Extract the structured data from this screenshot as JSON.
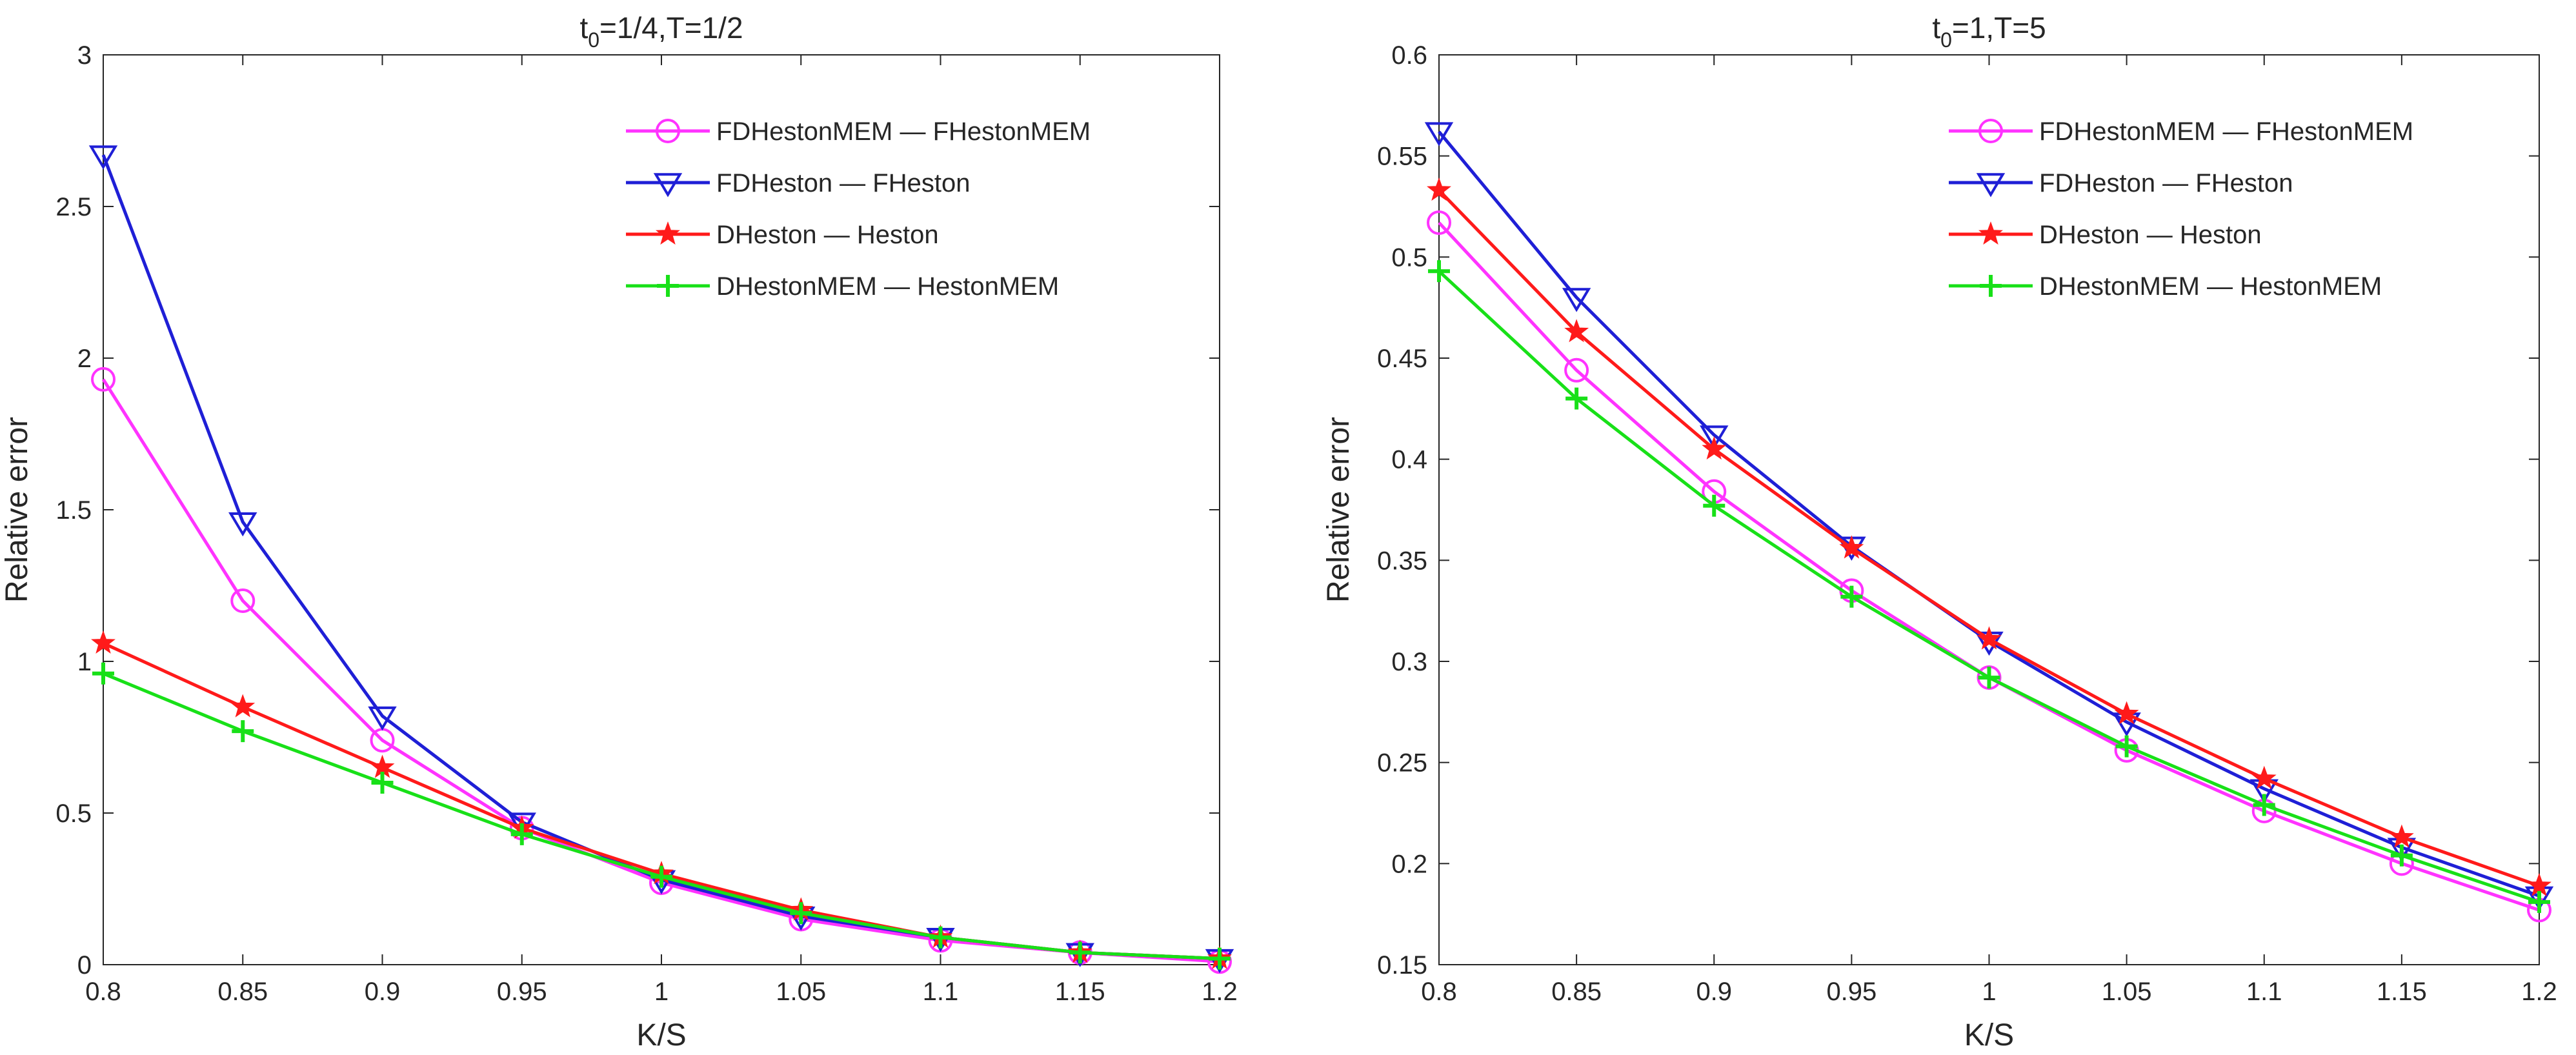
{
  "chart_data": [
    {
      "type": "line",
      "title": {
        "base": "t",
        "sub": "0",
        "rest": "=1/4,T=1/2"
      },
      "xlabel": "K/S",
      "ylabel": "Relative error",
      "x": [
        0.8,
        0.85,
        0.9,
        0.95,
        1,
        1.05,
        1.1,
        1.15,
        1.2
      ],
      "xticks": [
        "0.8",
        "0.85",
        "0.9",
        "0.95",
        "1",
        "1.05",
        "1.1",
        "1.15",
        "1.2"
      ],
      "xlim": [
        0.8,
        1.2
      ],
      "ylim": [
        0,
        3
      ],
      "yticks": [
        0,
        0.5,
        1,
        1.5,
        2,
        2.5,
        3
      ],
      "ytick_labels": [
        "0",
        "0.5",
        "1",
        "1.5",
        "2",
        "2.5",
        "3"
      ],
      "legend_position": "top-right",
      "series": [
        {
          "name": "FDHestonMEM — FHestonMEM",
          "color": "#ff33ff",
          "marker": "circle",
          "values": [
            1.93,
            1.2,
            0.74,
            0.45,
            0.27,
            0.15,
            0.08,
            0.04,
            0.01
          ]
        },
        {
          "name": "FDHeston — FHeston",
          "color": "#1f1fd6",
          "marker": "triangle-down",
          "values": [
            2.67,
            1.46,
            0.82,
            0.47,
            0.28,
            0.16,
            0.09,
            0.04,
            0.02
          ]
        },
        {
          "name": "DHeston — Heston",
          "color": "#ff1a1a",
          "marker": "star",
          "values": [
            1.06,
            0.85,
            0.65,
            0.45,
            0.3,
            0.18,
            0.09,
            0.04,
            0.02
          ]
        },
        {
          "name": "DHestonMEM — HestonMEM",
          "color": "#18e018",
          "marker": "plus",
          "values": [
            0.96,
            0.77,
            0.6,
            0.43,
            0.29,
            0.17,
            0.09,
            0.04,
            0.02
          ]
        }
      ]
    },
    {
      "type": "line",
      "title": {
        "base": "t",
        "sub": "0",
        "rest": "=1,T=5"
      },
      "xlabel": "K/S",
      "ylabel": "Relative error",
      "x": [
        0.8,
        0.85,
        0.9,
        0.95,
        1,
        1.05,
        1.1,
        1.15,
        1.2
      ],
      "xticks": [
        "0.8",
        "0.85",
        "0.9",
        "0.95",
        "1",
        "1.05",
        "1.1",
        "1.15",
        "1.2"
      ],
      "xlim": [
        0.8,
        1.2
      ],
      "ylim": [
        0.15,
        0.6
      ],
      "yticks": [
        0.15,
        0.2,
        0.25,
        0.3,
        0.35,
        0.4,
        0.45,
        0.5,
        0.55,
        0.6
      ],
      "ytick_labels": [
        "0.15",
        "0.2",
        "0.25",
        "0.3",
        "0.35",
        "0.4",
        "0.45",
        "0.5",
        "0.55",
        "0.6"
      ],
      "legend_position": "top-right",
      "series": [
        {
          "name": "FDHestonMEM — FHestonMEM",
          "color": "#ff33ff",
          "marker": "circle",
          "values": [
            0.517,
            0.444,
            0.384,
            0.335,
            0.292,
            0.256,
            0.226,
            0.2,
            0.177
          ]
        },
        {
          "name": "FDHeston — FHeston",
          "color": "#1f1fd6",
          "marker": "triangle-down",
          "values": [
            0.562,
            0.48,
            0.412,
            0.357,
            0.31,
            0.27,
            0.237,
            0.208,
            0.184
          ]
        },
        {
          "name": "DHeston — Heston",
          "color": "#ff1a1a",
          "marker": "star",
          "values": [
            0.533,
            0.463,
            0.405,
            0.356,
            0.311,
            0.274,
            0.242,
            0.213,
            0.189
          ]
        },
        {
          "name": "DHestonMEM — HestonMEM",
          "color": "#18e018",
          "marker": "plus",
          "values": [
            0.493,
            0.43,
            0.377,
            0.332,
            0.292,
            0.258,
            0.229,
            0.204,
            0.181
          ]
        }
      ]
    }
  ]
}
